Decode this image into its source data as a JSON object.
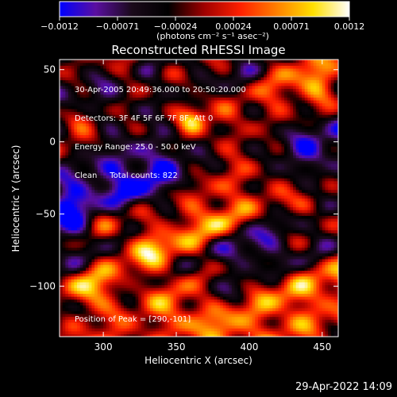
{
  "chart_data": {
    "type": "heatmap",
    "title": "Reconstructed RHESSI Image",
    "xlabel": "Heliocentric X (arcsec)",
    "ylabel": "Heliocentric Y (arcsec)",
    "xlim": [
      270,
      461
    ],
    "ylim": [
      -135,
      57
    ],
    "x_ticks": [
      300,
      350,
      400,
      450
    ],
    "y_ticks": [
      50,
      0,
      -50,
      -100
    ],
    "x_tick_labels": [
      "300",
      "350",
      "400",
      "450"
    ],
    "y_tick_labels": [
      "50",
      "0",
      "−50",
      "−100"
    ],
    "colorbar": {
      "range": [
        -0.0012,
        0.0012
      ],
      "tick_labels": [
        "−0.0012",
        "−0.00071",
        "−0.00024",
        "0.00024",
        "0.00071",
        "0.0012"
      ],
      "units_label": "(photons cm⁻² s⁻¹ asec⁻²)",
      "color_stops": [
        "#0000ff",
        "#5a0fa0",
        "#1a0a1a",
        "#000000",
        "#a00000",
        "#ff2000",
        "#ff8000",
        "#ffe000",
        "#ffffff"
      ]
    },
    "peak_position": [
      290,
      -101
    ],
    "peak_value": 0.0012,
    "bright_sources": [
      {
        "x": 290,
        "y": -101,
        "value": 0.0012,
        "spread_arcsec": 10
      },
      {
        "x": 361,
        "y": 15,
        "value": 0.00095,
        "spread_arcsec": 7
      },
      {
        "x": 300,
        "y": -50,
        "value": 0.0007,
        "spread_arcsec": 9
      },
      {
        "x": 350,
        "y": -115,
        "value": 0.0006,
        "spread_arcsec": 12
      },
      {
        "x": 378,
        "y": -130,
        "value": 0.0005,
        "spread_arcsec": 12
      },
      {
        "x": 440,
        "y": -45,
        "value": 0.0006,
        "spread_arcsec": 8
      },
      {
        "x": 330,
        "y": -75,
        "value": 0.0005,
        "spread_arcsec": 10
      },
      {
        "x": 448,
        "y": 38,
        "value": 0.0005,
        "spread_arcsec": 8
      },
      {
        "x": 282,
        "y": 15,
        "value": 0.00045,
        "spread_arcsec": 7
      },
      {
        "x": 320,
        "y": 50,
        "value": 0.0004,
        "spread_arcsec": 8
      },
      {
        "x": 410,
        "y": -95,
        "value": 0.0004,
        "spread_arcsec": 8
      },
      {
        "x": 380,
        "y": -55,
        "value": 0.00035,
        "spread_arcsec": 8
      }
    ],
    "negative_sources": [
      {
        "x": 430,
        "y": 0,
        "value": -0.0005,
        "spread_arcsec": 15
      },
      {
        "x": 395,
        "y": 40,
        "value": -0.0004,
        "spread_arcsec": 15
      },
      {
        "x": 400,
        "y": -75,
        "value": -0.00045,
        "spread_arcsec": 14
      },
      {
        "x": 340,
        "y": -25,
        "value": -0.0003,
        "spread_arcsec": 18
      },
      {
        "x": 275,
        "y": -40,
        "value": -0.0004,
        "spread_arcsec": 8
      }
    ]
  },
  "info": {
    "time_range": "30-Apr-2005 20:49:36.000 to 20:50:20.000",
    "detectors": "Detectors: 3F 4F 5F 6F 7F 8F, Att 0",
    "energy_range": "Energy Range: 25.0 - 50.0 keV",
    "algorithm": "Clean     Total counts: 822"
  },
  "peak_label": "Position of Peak = [290,-101]",
  "timestamp": "29-Apr-2022 14:09"
}
